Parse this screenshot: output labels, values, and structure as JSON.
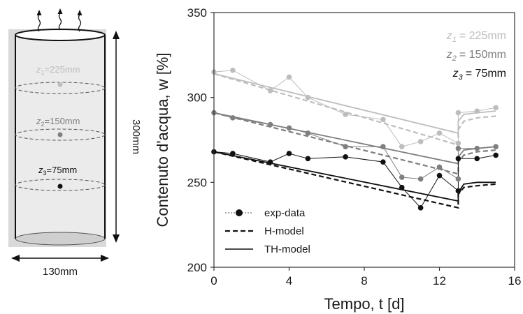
{
  "diagram": {
    "width_label": "130mm",
    "height_label": "300mm",
    "depth_labels": [
      {
        "z": "z",
        "sub": "1",
        "value": "=225mm",
        "color": "#bdbdbd"
      },
      {
        "z": "z",
        "sub": "2",
        "value": "=150mm",
        "color": "#7f7f7f"
      },
      {
        "z": "z",
        "sub": "3",
        "value": "=75mm",
        "color": "#111111"
      }
    ]
  },
  "chart_data": {
    "type": "line",
    "title": "",
    "xlabel": "Tempo, t [d]",
    "ylabel": "Contenuto d'acqua, w [%]",
    "xlim": [
      0,
      16
    ],
    "ylim": [
      200,
      350
    ],
    "xticks": [
      0,
      4,
      8,
      12,
      16
    ],
    "yticks": [
      200,
      250,
      300,
      350
    ],
    "grid": false,
    "legend_position": "bottom-left",
    "legend": [
      {
        "label": "exp-data",
        "style": "marker-line"
      },
      {
        "label": "H-model",
        "style": "dashed"
      },
      {
        "label": "TH-model",
        "style": "solid"
      }
    ],
    "depth_legend": [
      {
        "z": "z",
        "sub": "1",
        "value": "= 225mm",
        "color": "#bdbdbd"
      },
      {
        "z": "z",
        "sub": "2",
        "value": "= 150mm",
        "color": "#7f7f7f"
      },
      {
        "z": "z",
        "sub": "3",
        "value": "= 75mm",
        "color": "#111111"
      }
    ],
    "series": [
      {
        "depth": "z1",
        "color": "#bdbdbd",
        "exp": {
          "x": [
            0,
            1,
            3,
            4,
            5,
            7,
            9,
            10,
            11,
            12,
            13,
            13,
            14,
            15
          ],
          "y": [
            315,
            316,
            304,
            312,
            300,
            290,
            287,
            271,
            274,
            279,
            273,
            291,
            292,
            294
          ]
        },
        "h_model": {
          "x": [
            0,
            13,
            13,
            13.3,
            14,
            15
          ],
          "y": [
            314,
            272,
            281,
            286,
            288,
            289
          ]
        },
        "th_model": {
          "x": [
            0,
            13,
            13,
            13.3,
            14,
            15
          ],
          "y": [
            314,
            279,
            286,
            290,
            291,
            292
          ]
        }
      },
      {
        "depth": "z2",
        "color": "#7f7f7f",
        "exp": {
          "x": [
            0,
            1,
            3,
            4,
            5,
            7,
            9,
            10,
            11,
            12,
            13,
            13,
            14,
            15
          ],
          "y": [
            291,
            288,
            284,
            282,
            279,
            271,
            271,
            253,
            252,
            259,
            252,
            270,
            270,
            271
          ]
        },
        "h_model": {
          "x": [
            0,
            13,
            13,
            13.3,
            14,
            15
          ],
          "y": [
            291,
            255,
            262,
            266,
            268,
            269
          ]
        },
        "th_model": {
          "x": [
            0,
            13,
            13,
            13.3,
            14,
            15
          ],
          "y": [
            291,
            261,
            265,
            269,
            270,
            271
          ]
        }
      },
      {
        "depth": "z3",
        "color": "#111111",
        "exp": {
          "x": [
            0,
            1,
            3,
            4,
            5,
            7,
            9,
            10,
            11,
            12,
            13,
            13,
            14,
            15
          ],
          "y": [
            268,
            267,
            262,
            267,
            264,
            265,
            262,
            247,
            235,
            254,
            245,
            264,
            264,
            266
          ]
        },
        "h_model": {
          "x": [
            0,
            13,
            13,
            13.3,
            14,
            15
          ],
          "y": [
            268,
            235,
            243,
            247,
            248,
            249
          ]
        },
        "th_model": {
          "x": [
            0,
            13,
            13,
            13.3,
            14,
            15
          ],
          "y": [
            268,
            239,
            244,
            249,
            250,
            250
          ]
        }
      }
    ]
  }
}
